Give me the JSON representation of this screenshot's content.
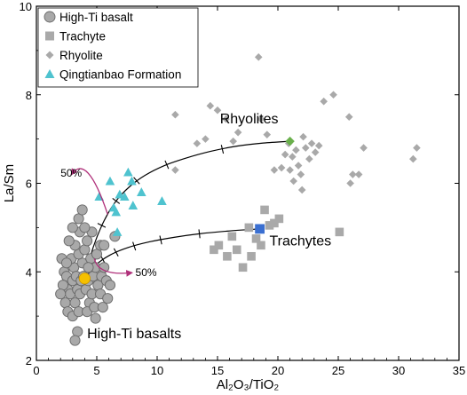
{
  "chart_data": {
    "type": "scatter",
    "title": "",
    "xlabel": "Al₂O₃/TiO₂",
    "ylabel": "La/Sm",
    "xlim": [
      0,
      35
    ],
    "ylim": [
      2,
      10
    ],
    "x_ticks": [
      "0",
      "5",
      "10",
      "15",
      "20",
      "25",
      "30",
      "35"
    ],
    "y_ticks": [
      "2",
      "4",
      "6",
      "8",
      "10"
    ],
    "legend_position": "top-left",
    "series": [
      {
        "name": "High-Ti basalt",
        "marker": "circle",
        "color": "#a9a9a9",
        "points": [
          [
            2.1,
            4.3
          ],
          [
            2.3,
            4.0
          ],
          [
            2.5,
            3.9
          ],
          [
            2.6,
            3.6
          ],
          [
            2.4,
            3.3
          ],
          [
            2.8,
            3.5
          ],
          [
            3.0,
            3.8
          ],
          [
            3.1,
            4.1
          ],
          [
            3.3,
            3.9
          ],
          [
            3.4,
            3.6
          ],
          [
            3.2,
            3.3
          ],
          [
            3.6,
            3.5
          ],
          [
            3.7,
            3.8
          ],
          [
            3.8,
            4.2
          ],
          [
            3.9,
            3.9
          ],
          [
            4.1,
            3.6
          ],
          [
            4.3,
            3.8
          ],
          [
            4.4,
            3.3
          ],
          [
            4.6,
            3.5
          ],
          [
            4.7,
            3.9
          ],
          [
            4.9,
            4.1
          ],
          [
            5.1,
            3.7
          ],
          [
            5.3,
            3.5
          ],
          [
            5.4,
            3.9
          ],
          [
            5.6,
            4.1
          ],
          [
            5.8,
            3.8
          ],
          [
            5.9,
            3.4
          ],
          [
            6.1,
            3.7
          ],
          [
            2.9,
            4.3
          ],
          [
            3.5,
            4.4
          ],
          [
            4.0,
            4.5
          ],
          [
            4.5,
            4.3
          ],
          [
            5.0,
            4.4
          ],
          [
            3.2,
            4.6
          ],
          [
            4.2,
            4.7
          ],
          [
            5.3,
            4.6
          ],
          [
            3.6,
            4.9
          ],
          [
            4.6,
            4.9
          ],
          [
            2.7,
            4.7
          ],
          [
            3.0,
            5.0
          ],
          [
            3.5,
            5.2
          ],
          [
            4.0,
            5.0
          ],
          [
            3.8,
            5.4
          ],
          [
            6.5,
            4.8
          ],
          [
            2.6,
            3.1
          ],
          [
            3.0,
            3.0
          ],
          [
            3.5,
            3.1
          ],
          [
            4.2,
            3.1
          ],
          [
            4.8,
            3.2
          ],
          [
            5.5,
            3.2
          ],
          [
            2.2,
            3.7
          ],
          [
            2.0,
            3.5
          ],
          [
            3.4,
            2.65
          ],
          [
            4.9,
            2.95
          ],
          [
            3.2,
            2.45
          ],
          [
            5.6,
            4.6
          ],
          [
            4.3,
            4.1
          ],
          [
            2.5,
            4.2
          ]
        ]
      },
      {
        "name": "Trachyte",
        "marker": "square",
        "color": "#a9a9a9",
        "points": [
          [
            14.7,
            4.5
          ],
          [
            15.1,
            4.6
          ],
          [
            15.8,
            4.35
          ],
          [
            16.2,
            4.8
          ],
          [
            16.6,
            4.5
          ],
          [
            17.1,
            4.1
          ],
          [
            17.6,
            5.0
          ],
          [
            17.8,
            4.35
          ],
          [
            18.2,
            4.75
          ],
          [
            18.6,
            4.6
          ],
          [
            18.9,
            5.4
          ],
          [
            19.3,
            5.05
          ],
          [
            19.7,
            5.1
          ],
          [
            20.1,
            5.2
          ],
          [
            25.1,
            4.9
          ]
        ]
      },
      {
        "name": "Rhyolite",
        "marker": "diamond",
        "color": "#a9a9a9",
        "points": [
          [
            11.5,
            7.55
          ],
          [
            11.5,
            6.3
          ],
          [
            13.3,
            6.9
          ],
          [
            14.0,
            7.0
          ],
          [
            14.4,
            7.75
          ],
          [
            15.0,
            7.65
          ],
          [
            15.7,
            7.45
          ],
          [
            16.3,
            6.95
          ],
          [
            16.7,
            7.15
          ],
          [
            18.4,
            8.85
          ],
          [
            18.6,
            7.45
          ],
          [
            19.1,
            7.1
          ],
          [
            19.7,
            6.3
          ],
          [
            20.3,
            6.35
          ],
          [
            20.6,
            6.65
          ],
          [
            20.9,
            6.9
          ],
          [
            21.2,
            6.6
          ],
          [
            21.5,
            6.75
          ],
          [
            21.7,
            6.4
          ],
          [
            21.9,
            6.2
          ],
          [
            22.1,
            7.05
          ],
          [
            22.3,
            6.8
          ],
          [
            22.6,
            6.55
          ],
          [
            22.8,
            6.9
          ],
          [
            23.1,
            6.7
          ],
          [
            23.4,
            6.85
          ],
          [
            23.8,
            7.85
          ],
          [
            24.6,
            8.0
          ],
          [
            25.9,
            7.5
          ],
          [
            21.3,
            6.05
          ],
          [
            22.0,
            5.85
          ],
          [
            26.2,
            6.2
          ],
          [
            26.7,
            6.2
          ],
          [
            27.1,
            6.8
          ],
          [
            31.2,
            6.55
          ],
          [
            31.5,
            6.8
          ],
          [
            21.0,
            6.3
          ],
          [
            26.0,
            6.0
          ]
        ]
      },
      {
        "name": "Qingtianbao Formation",
        "marker": "triangle",
        "color": "#4fc3cf",
        "points": [
          [
            5.2,
            5.7
          ],
          [
            6.1,
            6.05
          ],
          [
            6.4,
            5.45
          ],
          [
            6.6,
            5.35
          ],
          [
            6.9,
            5.75
          ],
          [
            7.3,
            5.7
          ],
          [
            7.6,
            6.25
          ],
          [
            7.9,
            6.05
          ],
          [
            8.0,
            5.5
          ],
          [
            10.4,
            5.6
          ],
          [
            6.7,
            4.9
          ],
          [
            8.7,
            5.8
          ]
        ]
      }
    ],
    "endmembers": [
      {
        "name": "high-ti-basalt-endmember",
        "x": 4.0,
        "y": 3.85,
        "color": "#f5c000"
      },
      {
        "name": "rhyolite-endmember",
        "x": 21.0,
        "y": 6.95,
        "color": "#6ab04c"
      },
      {
        "name": "trachyte-endmember",
        "x": 18.5,
        "y": 4.97,
        "color": "#3a6fd1"
      }
    ],
    "mixing_curves": [
      {
        "name": "basalt-rhyolite",
        "points": [
          [
            4.0,
            3.85
          ],
          [
            4.7,
            4.55
          ],
          [
            5.6,
            5.15
          ],
          [
            6.6,
            5.6
          ],
          [
            7.7,
            5.92
          ],
          [
            9.0,
            6.18
          ],
          [
            10.6,
            6.4
          ],
          [
            12.4,
            6.57
          ],
          [
            14.4,
            6.72
          ],
          [
            16.6,
            6.84
          ],
          [
            18.8,
            6.91
          ],
          [
            21.0,
            6.95
          ]
        ],
        "ticks": [
          [
            4.5,
            4.38
          ],
          [
            5.4,
            5.05
          ],
          [
            6.6,
            5.6
          ],
          [
            8.3,
            6.06
          ],
          [
            10.8,
            6.42
          ],
          [
            15.4,
            6.77
          ]
        ]
      },
      {
        "name": "basalt-trachyte",
        "points": [
          [
            4.0,
            3.85
          ],
          [
            4.9,
            4.15
          ],
          [
            6.1,
            4.38
          ],
          [
            7.6,
            4.55
          ],
          [
            9.4,
            4.68
          ],
          [
            11.4,
            4.78
          ],
          [
            13.5,
            4.86
          ],
          [
            15.8,
            4.92
          ],
          [
            18.5,
            4.97
          ]
        ],
        "ticks": [
          [
            4.7,
            4.1
          ],
          [
            5.5,
            4.28
          ],
          [
            6.6,
            4.44
          ],
          [
            8.1,
            4.58
          ],
          [
            10.3,
            4.72
          ],
          [
            13.5,
            4.86
          ]
        ]
      }
    ],
    "annotations": [
      {
        "name": "rhyolites-label",
        "text": "Rhyolites",
        "x": 15.2,
        "y": 7.35,
        "size": 16
      },
      {
        "name": "trachytes-label",
        "text": "Trachytes",
        "x": 19.3,
        "y": 4.6,
        "size": 16
      },
      {
        "name": "high-ti-basalts-label",
        "text": "High-Ti basalts",
        "x": 4.2,
        "y": 2.5,
        "size": 16
      },
      {
        "name": "fifty-percent-upper-label",
        "text": "50%",
        "x": 2.0,
        "y": 6.15,
        "size": 12
      },
      {
        "name": "fifty-percent-lower-label",
        "text": "50%",
        "x": 8.2,
        "y": 3.9,
        "size": 12
      }
    ],
    "arrows": [
      {
        "name": "arrow-upper",
        "from": [
          5.9,
          5.3
        ],
        "ctrl": [
          4.2,
          6.7
        ],
        "to": [
          2.9,
          6.2
        ]
      },
      {
        "name": "arrow-lower",
        "from": [
          4.8,
          4.3
        ],
        "ctrl": [
          5.1,
          3.9
        ],
        "to": [
          7.9,
          3.98
        ]
      }
    ]
  }
}
